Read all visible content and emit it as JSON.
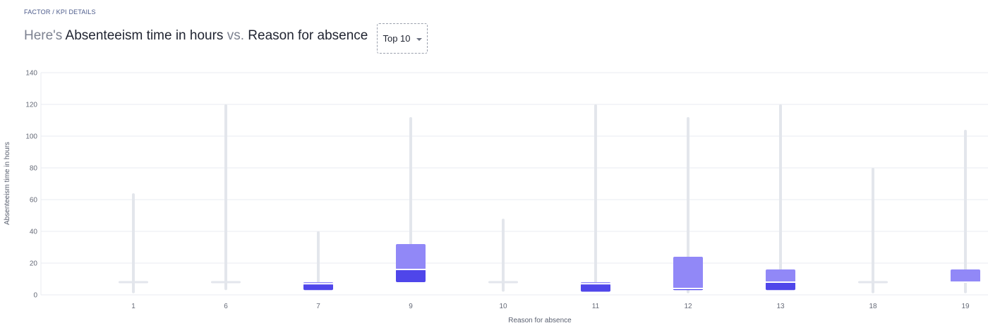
{
  "breadcrumb": "FACTOR / KPI DETAILS",
  "headline": {
    "prefix": "Here's",
    "metric": "Absenteeism time in hours",
    "vs": "vs.",
    "factor": "Reason for absence"
  },
  "dropdown": {
    "selected": "Top 10"
  },
  "colors": {
    "whisker": "#e3e6ec",
    "box_upper": "#9188f7",
    "box_lower": "#4f46ea",
    "median": "#ffffff",
    "grid": "#e9ebf0"
  },
  "chart_data": {
    "type": "boxplot",
    "title": "Absenteeism time in hours vs. Reason for absence",
    "xlabel": "Reason for absence",
    "ylabel": "Absenteeism time in hours",
    "ylim": [
      0,
      140
    ],
    "yticks": [
      0,
      20,
      40,
      60,
      80,
      100,
      120,
      140
    ],
    "grid": true,
    "categories": [
      "1",
      "6",
      "7",
      "9",
      "10",
      "11",
      "12",
      "13",
      "18",
      "19"
    ],
    "boxes": [
      {
        "category": "1",
        "min": 1,
        "q1": 8,
        "median": 8,
        "q3": 8,
        "max": 64
      },
      {
        "category": "6",
        "min": 3,
        "q1": 8,
        "median": 8,
        "q3": 8,
        "max": 120
      },
      {
        "category": "7",
        "min": 3,
        "q1": 3,
        "median": 7,
        "q3": 8,
        "max": 40
      },
      {
        "category": "9",
        "min": 8,
        "q1": 8,
        "median": 16,
        "q3": 32,
        "max": 112
      },
      {
        "category": "10",
        "min": 2,
        "q1": 8,
        "median": 8,
        "q3": 8,
        "max": 48
      },
      {
        "category": "11",
        "min": 2,
        "q1": 2,
        "median": 7,
        "q3": 8,
        "max": 120
      },
      {
        "category": "12",
        "min": 1,
        "q1": 3,
        "median": 4,
        "q3": 24,
        "max": 112
      },
      {
        "category": "13",
        "min": 3,
        "q1": 3,
        "median": 8,
        "q3": 16,
        "max": 120
      },
      {
        "category": "18",
        "min": 1,
        "q1": 8,
        "median": 8,
        "q3": 8,
        "max": 80
      },
      {
        "category": "19",
        "min": 1,
        "q1": 8,
        "median": 8,
        "q3": 16,
        "max": 104
      }
    ]
  }
}
